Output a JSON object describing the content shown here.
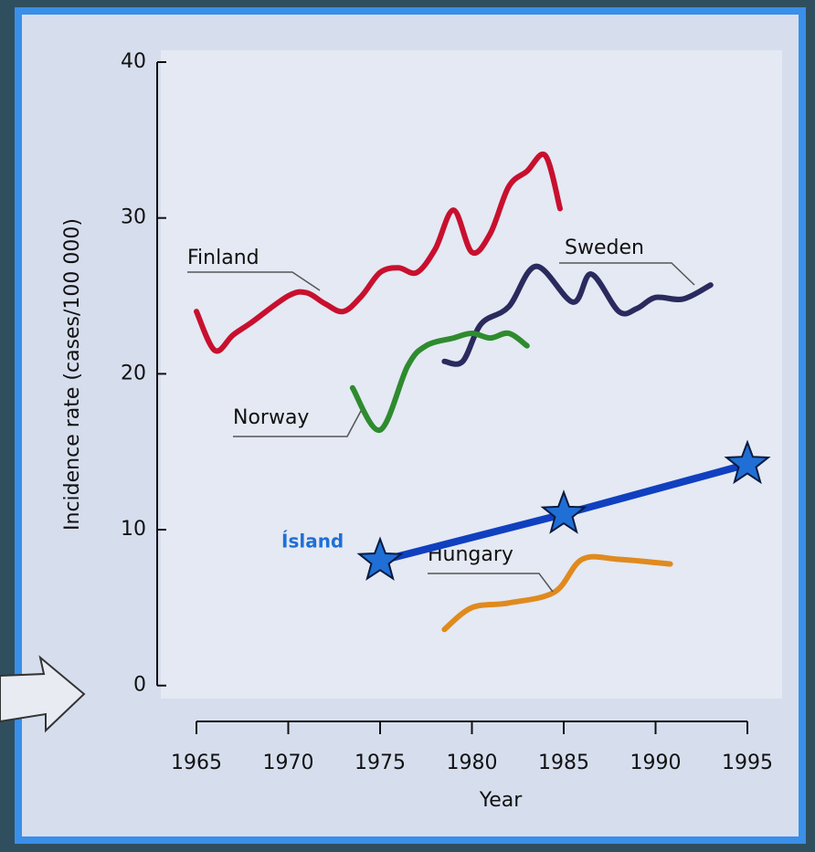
{
  "chart_data": {
    "type": "line",
    "xlabel": "Year",
    "ylabel": "Incidence rate (cases/100 000)",
    "xlim": [
      1965,
      1995
    ],
    "xticks": [
      1965,
      1970,
      1975,
      1980,
      1985,
      1990,
      1995
    ],
    "ylim": [
      -2.3,
      40
    ],
    "yticks": [
      0,
      10,
      20,
      30,
      40
    ],
    "series": [
      {
        "name": "Finland",
        "color": "#c8102e",
        "x": [
          1965,
          1966,
          1967,
          1968,
          1970,
          1971,
          1972,
          1973,
          1974,
          1975,
          1976,
          1977,
          1978,
          1979,
          1980,
          1981,
          1982,
          1983,
          1984,
          1984.8
        ],
        "values": [
          24,
          21.5,
          22.5,
          23.3,
          25,
          25.2,
          24.5,
          24,
          25,
          26.5,
          26.8,
          26.5,
          28,
          30.5,
          27.8,
          29,
          32,
          33,
          34,
          30.6
        ]
      },
      {
        "name": "Sweden",
        "color": "#2a2a5e",
        "x": [
          1978.5,
          1979.5,
          1980.5,
          1982,
          1983.5,
          1985.5,
          1986.5,
          1988,
          1989,
          1990,
          1991.5,
          1993
        ],
        "values": [
          20.8,
          20.8,
          23.2,
          24.3,
          26.9,
          24.6,
          26.4,
          24,
          24.2,
          24.9,
          24.8,
          25.7
        ]
      },
      {
        "name": "Norway",
        "color": "#2e8b2e",
        "x": [
          1973.5,
          1975,
          1976.5,
          1977.5,
          1979,
          1980,
          1981,
          1982,
          1983
        ],
        "values": [
          19.1,
          16.4,
          20.5,
          21.8,
          22.3,
          22.6,
          22.3,
          22.6,
          21.8
        ]
      },
      {
        "name": "Hungary",
        "color": "#e08a1e",
        "x": [
          1978.5,
          1980,
          1982,
          1984.5,
          1986,
          1988,
          1990.8
        ],
        "values": [
          3.6,
          5,
          5.3,
          6,
          8.1,
          8.1,
          7.8
        ]
      },
      {
        "name": "Ísland",
        "color": "#1040c0",
        "marker": "star",
        "x": [
          1975,
          1985,
          1995
        ],
        "values": [
          8,
          11,
          14.2
        ]
      }
    ]
  }
}
